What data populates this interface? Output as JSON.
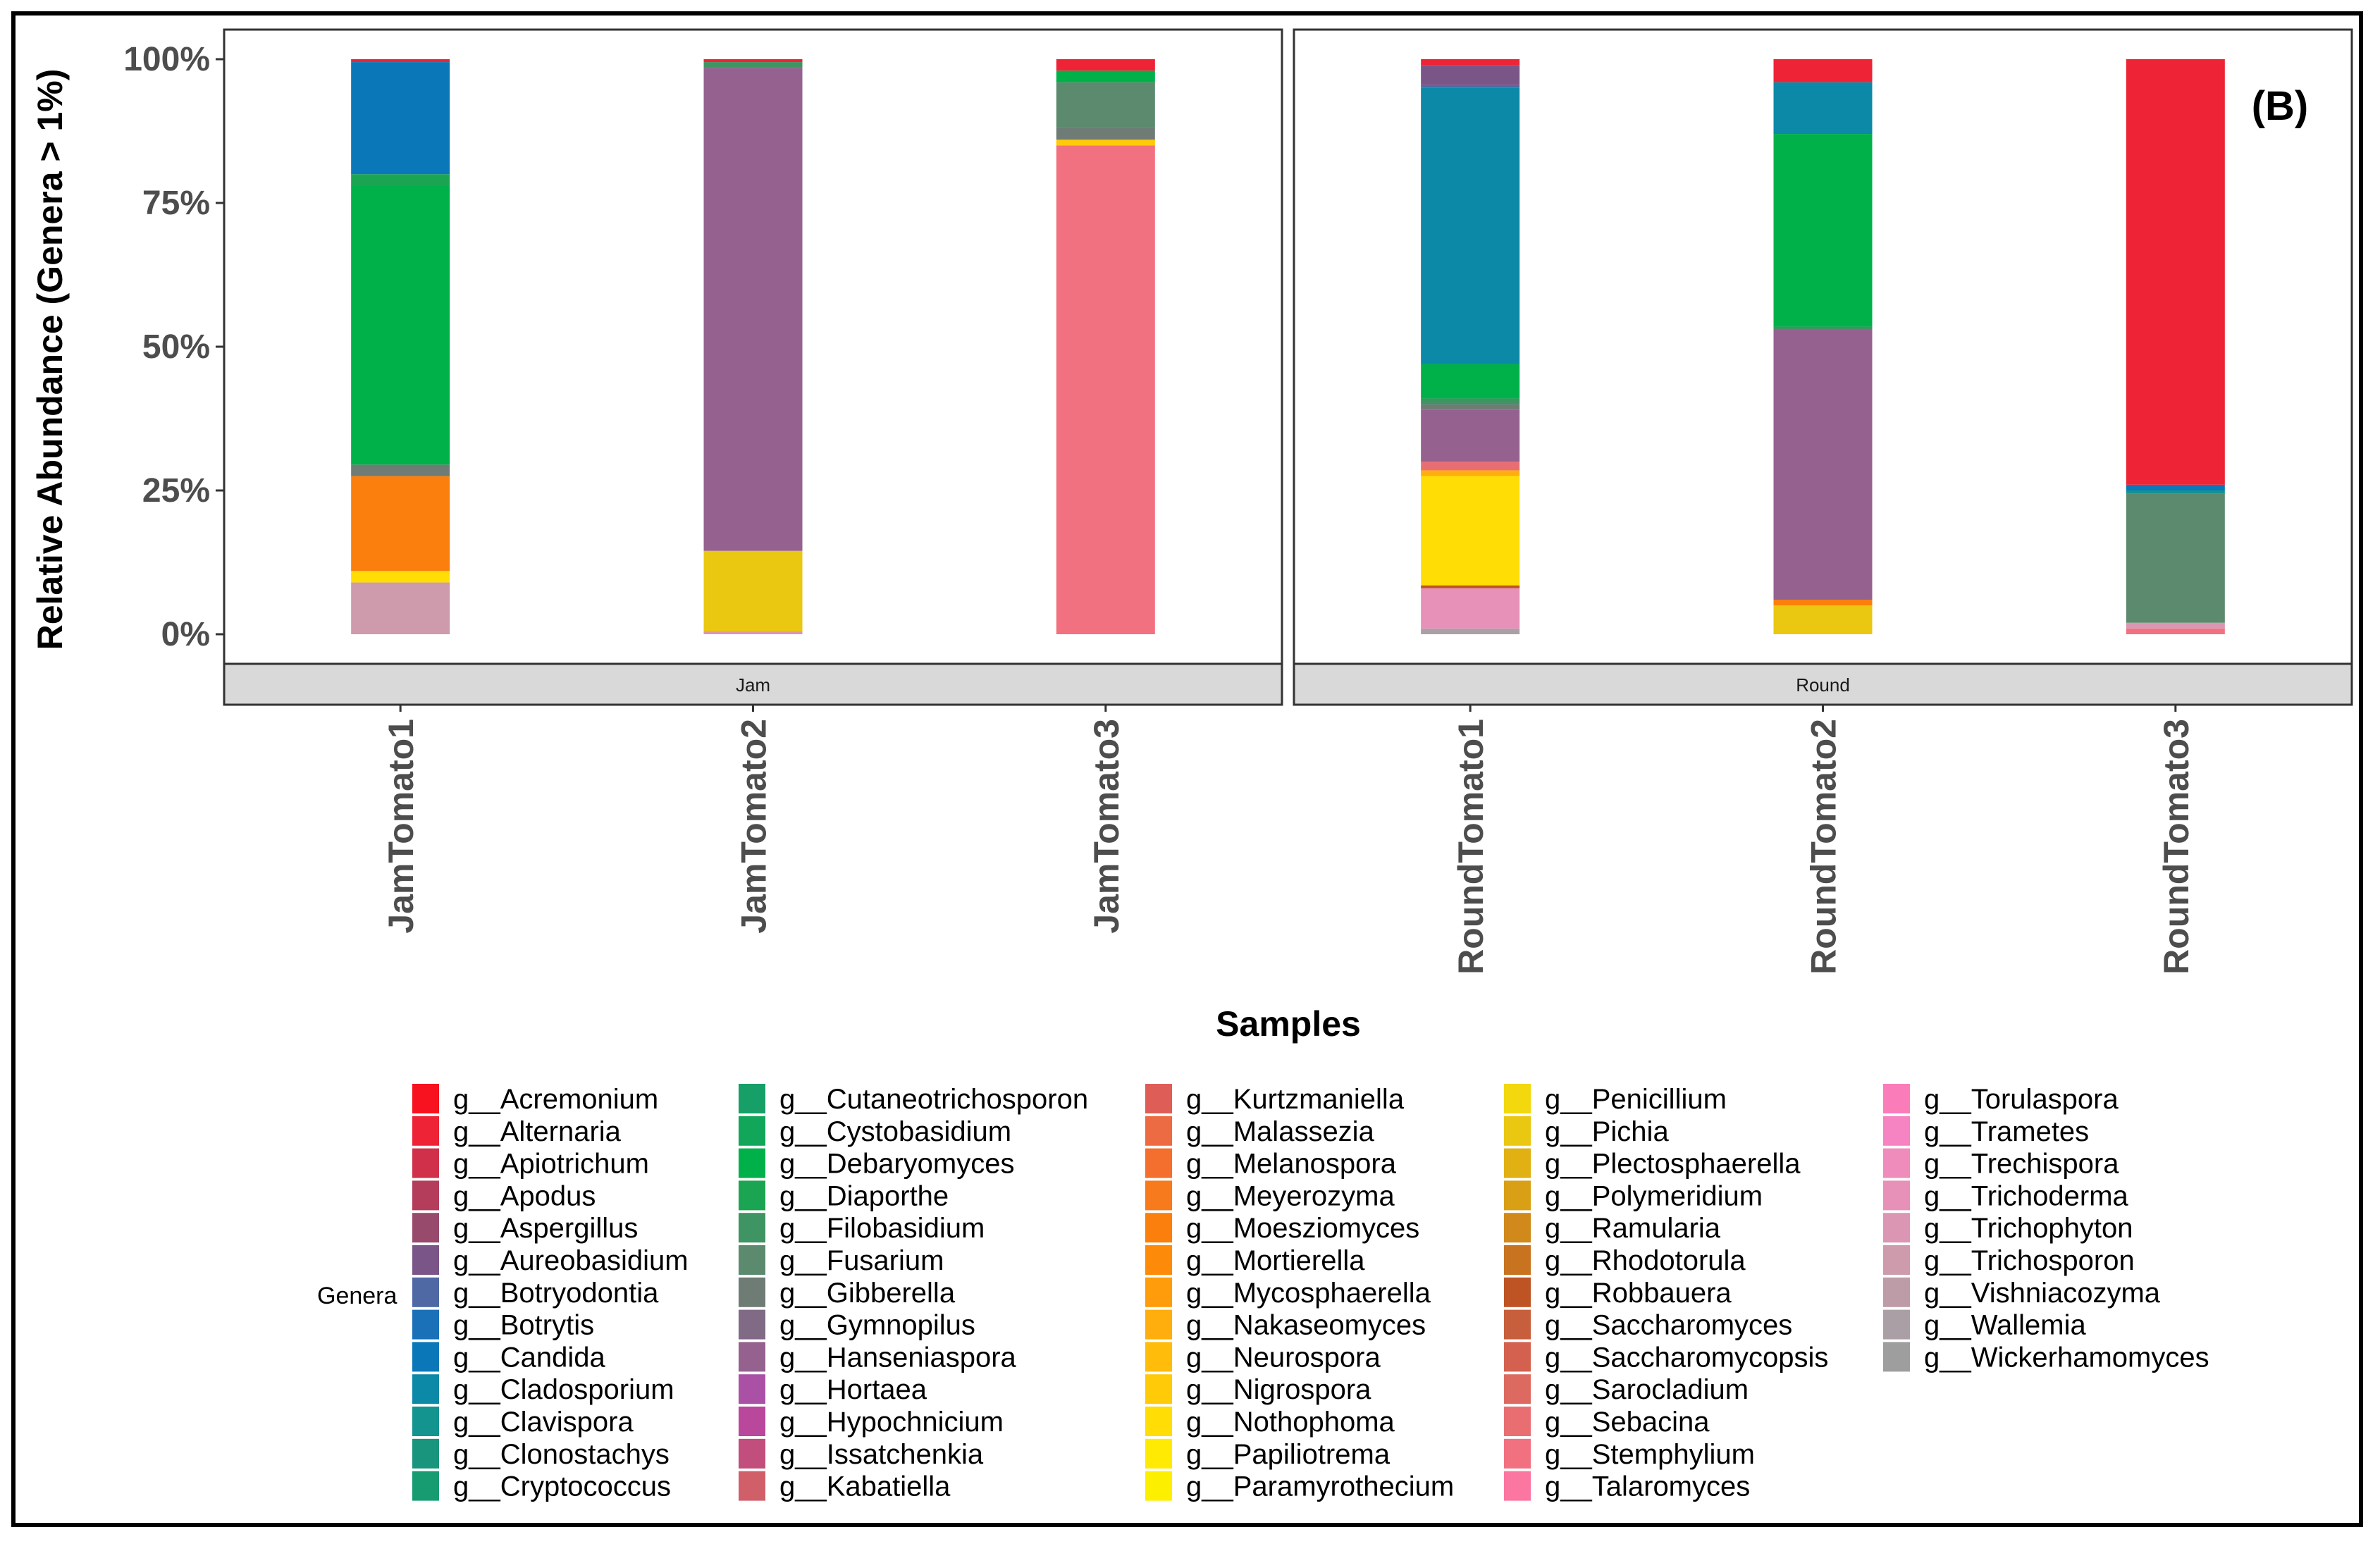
{
  "chart_data": {
    "type": "bar",
    "stacked": true,
    "panel_tag": "(B)",
    "ylabel": "Relative Abundance (Genera > 1%)",
    "xlabel": "Samples",
    "ylim": [
      0,
      100
    ],
    "y_ticks": [
      "0%",
      "25%",
      "50%",
      "75%",
      "100%"
    ],
    "y_tick_values": [
      0,
      25,
      50,
      75,
      100
    ],
    "grid": false,
    "legend_title": "Genera",
    "legend_position": "bottom",
    "facets": [
      {
        "label": "Jam",
        "samples": [
          "JamTomato1",
          "JamTomato2",
          "JamTomato3"
        ]
      },
      {
        "label": "Round",
        "samples": [
          "RoundTomato1",
          "RoundTomato2",
          "RoundTomato3"
        ]
      }
    ],
    "genera": [
      {
        "name": "g__Acremonium",
        "color": "#F8111E"
      },
      {
        "name": "g__Alternaria",
        "color": "#EE2336"
      },
      {
        "name": "g__Apiotrichum",
        "color": "#D1304A"
      },
      {
        "name": "g__Apodus",
        "color": "#B53D5C"
      },
      {
        "name": "g__Aspergillus",
        "color": "#974A6C"
      },
      {
        "name": "g__Aureobasidium",
        "color": "#7A5587"
      },
      {
        "name": "g__Botryodontia",
        "color": "#4F69A5"
      },
      {
        "name": "g__Botrytis",
        "color": "#1A71B7"
      },
      {
        "name": "g__Candida",
        "color": "#0A78B8"
      },
      {
        "name": "g__Cladosporium",
        "color": "#0B89A6"
      },
      {
        "name": "g__Clavispora",
        "color": "#13948F"
      },
      {
        "name": "g__Clonostachys",
        "color": "#19957D"
      },
      {
        "name": "g__Cryptococcus",
        "color": "#179C72"
      },
      {
        "name": "g__Cutaneotrichosporon",
        "color": "#169F66"
      },
      {
        "name": "g__Cystobasidium",
        "color": "#11A65A"
      },
      {
        "name": "g__Debaryomyces",
        "color": "#00B14A"
      },
      {
        "name": "g__Diaporthe",
        "color": "#1BA552"
      },
      {
        "name": "g__Filobasidium",
        "color": "#3E9462"
      },
      {
        "name": "g__Fusarium",
        "color": "#5C8A6E"
      },
      {
        "name": "g__Gibberella",
        "color": "#6F7C76"
      },
      {
        "name": "g__Gymnopilus",
        "color": "#806A86"
      },
      {
        "name": "g__Hanseniaspora",
        "color": "#95628F"
      },
      {
        "name": "g__Hortaea",
        "color": "#AA51A5"
      },
      {
        "name": "g__Hypochnicium",
        "color": "#B9479B"
      },
      {
        "name": "g__Issatchenkia",
        "color": "#C14E7C"
      },
      {
        "name": "g__Kabatiella",
        "color": "#D05F6A"
      },
      {
        "name": "g__Kurtzmaniella",
        "color": "#DE5D57"
      },
      {
        "name": "g__Malassezia",
        "color": "#EC6B43"
      },
      {
        "name": "g__Melanospora",
        "color": "#F46E2D"
      },
      {
        "name": "g__Meyerozyma",
        "color": "#F77A1C"
      },
      {
        "name": "g__Moesziomyces",
        "color": "#FB7F0D"
      },
      {
        "name": "g__Mortierella",
        "color": "#FD8A08"
      },
      {
        "name": "g__Mycosphaerella",
        "color": "#FE9C0B"
      },
      {
        "name": "g__Nakaseomyces",
        "color": "#FFAE0D"
      },
      {
        "name": "g__Neurospora",
        "color": "#FFBC0B"
      },
      {
        "name": "g__Nigrospora",
        "color": "#FFCA08"
      },
      {
        "name": "g__Nothophoma",
        "color": "#FFDD05"
      },
      {
        "name": "g__Papiliotrema",
        "color": "#FFEA03"
      },
      {
        "name": "g__Paramyrothecium",
        "color": "#FCEF00"
      },
      {
        "name": "g__Penicillium",
        "color": "#F2D80C"
      },
      {
        "name": "g__Pichia",
        "color": "#EAC710"
      },
      {
        "name": "g__Plectosphaerella",
        "color": "#E1B012"
      },
      {
        "name": "g__Polymeridium",
        "color": "#D99F15"
      },
      {
        "name": "g__Ramularia",
        "color": "#D0891A"
      },
      {
        "name": "g__Rhodotorula",
        "color": "#C8731F"
      },
      {
        "name": "g__Robbauera",
        "color": "#BE5424"
      },
      {
        "name": "g__Saccharomyces",
        "color": "#C85F3C"
      },
      {
        "name": "g__Saccharomycopsis",
        "color": "#D4614F"
      },
      {
        "name": "g__Sarocladium",
        "color": "#DD6A61"
      },
      {
        "name": "g__Sebacina",
        "color": "#E96E72"
      },
      {
        "name": "g__Stemphylium",
        "color": "#F27180"
      },
      {
        "name": "g__Talaromyces",
        "color": "#FB76A0"
      },
      {
        "name": "g__Torulaspora",
        "color": "#FA7DBA"
      },
      {
        "name": "g__Trametes",
        "color": "#F683C2"
      },
      {
        "name": "g__Trechispora",
        "color": "#EF8CBC"
      },
      {
        "name": "g__Trichoderma",
        "color": "#E891B8"
      },
      {
        "name": "g__Trichophyton",
        "color": "#DA96B2"
      },
      {
        "name": "g__Trichosporon",
        "color": "#CD9BAC"
      },
      {
        "name": "g__Vishniacozyma",
        "color": "#BD9CA8"
      },
      {
        "name": "g__Wallemia",
        "color": "#AB9FA6"
      },
      {
        "name": "g__Wickerhamomyces",
        "color": "#9E9E9E"
      }
    ],
    "series": [
      {
        "sample": "JamTomato1",
        "segments": [
          {
            "genus": "g__Trichosporon",
            "value": 9
          },
          {
            "genus": "g__Nothophoma",
            "value": 2
          },
          {
            "genus": "g__Moesziomyces",
            "value": 16.5
          },
          {
            "genus": "g__Gibberella",
            "value": 2
          },
          {
            "genus": "g__Debaryomyces",
            "value": 48.5
          },
          {
            "genus": "g__Diaporthe",
            "value": 2
          },
          {
            "genus": "g__Candida",
            "value": 19.5
          },
          {
            "genus": "g__Alternaria",
            "value": 0.5
          }
        ]
      },
      {
        "sample": "JamTomato2",
        "segments": [
          {
            "genus": "g__Trichophyton",
            "value": 0.5
          },
          {
            "genus": "g__Pichia",
            "value": 14
          },
          {
            "genus": "g__Hanseniaspora",
            "value": 84
          },
          {
            "genus": "g__Filobasidium",
            "value": 1
          },
          {
            "genus": "g__Alternaria",
            "value": 0.5
          }
        ]
      },
      {
        "sample": "JamTomato3",
        "segments": [
          {
            "genus": "g__Stemphylium",
            "value": 85
          },
          {
            "genus": "g__Nigrospora",
            "value": 1
          },
          {
            "genus": "g__Gibberella",
            "value": 2
          },
          {
            "genus": "g__Fusarium",
            "value": 8
          },
          {
            "genus": "g__Debaryomyces",
            "value": 2
          },
          {
            "genus": "g__Alternaria",
            "value": 2
          }
        ]
      },
      {
        "sample": "RoundTomato1",
        "segments": [
          {
            "genus": "g__Wallemia",
            "value": 1
          },
          {
            "genus": "g__Trichoderma",
            "value": 7
          },
          {
            "genus": "g__Robbauera",
            "value": 0.5
          },
          {
            "genus": "g__Nothophoma",
            "value": 19
          },
          {
            "genus": "g__Nakaseomyces",
            "value": 1
          },
          {
            "genus": "g__Sebacina",
            "value": 1.5
          },
          {
            "genus": "g__Hanseniaspora",
            "value": 9
          },
          {
            "genus": "g__Gibberella",
            "value": 1
          },
          {
            "genus": "g__Filobasidium",
            "value": 1
          },
          {
            "genus": "g__Debaryomyces",
            "value": 6
          },
          {
            "genus": "g__Cladosporium",
            "value": 48
          },
          {
            "genus": "g__Botryodontia",
            "value": 0.5
          },
          {
            "genus": "g__Aureobasidium",
            "value": 3.5
          },
          {
            "genus": "g__Alternaria",
            "value": 1
          }
        ]
      },
      {
        "sample": "RoundTomato2",
        "segments": [
          {
            "genus": "g__Pichia",
            "value": 5
          },
          {
            "genus": "g__Moesziomyces",
            "value": 1
          },
          {
            "genus": "g__Hanseniaspora",
            "value": 47
          },
          {
            "genus": "g__Filobasidium",
            "value": 0.5
          },
          {
            "genus": "g__Debaryomyces",
            "value": 33.5
          },
          {
            "genus": "g__Cladosporium",
            "value": 9
          },
          {
            "genus": "g__Alternaria",
            "value": 4
          }
        ]
      },
      {
        "sample": "RoundTomato3",
        "segments": [
          {
            "genus": "g__Stemphylium",
            "value": 1
          },
          {
            "genus": "g__Trichophyton",
            "value": 1
          },
          {
            "genus": "g__Fusarium",
            "value": 22.5
          },
          {
            "genus": "g__Clavispora",
            "value": 0.5
          },
          {
            "genus": "g__Candida",
            "value": 1
          },
          {
            "genus": "g__Alternaria",
            "value": 74
          }
        ]
      }
    ]
  }
}
